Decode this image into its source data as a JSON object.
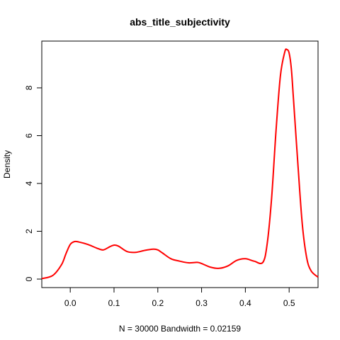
{
  "chart_data": {
    "type": "line",
    "title": "abs_title_subjectivity",
    "xlabel": "N = 30000   Bandwidth = 0.02159",
    "ylabel": "Density",
    "xlim": [
      -0.065,
      0.566
    ],
    "ylim": [
      0,
      9.6
    ],
    "grid": false,
    "legend": "none",
    "line_color": "#ff0000",
    "x_ticks": [
      "0.0",
      "0.1",
      "0.2",
      "0.3",
      "0.4",
      "0.5"
    ],
    "y_ticks": [
      "0",
      "2",
      "4",
      "6",
      "8"
    ],
    "series": [
      {
        "x": [
          -0.065,
          -0.04,
          -0.02,
          -0.01,
          0.0,
          0.01,
          0.02,
          0.04,
          0.06,
          0.075,
          0.09,
          0.1,
          0.11,
          0.13,
          0.15,
          0.17,
          0.19,
          0.2,
          0.21,
          0.23,
          0.25,
          0.27,
          0.29,
          0.3,
          0.32,
          0.34,
          0.36,
          0.38,
          0.4,
          0.42,
          0.44,
          0.45,
          0.46,
          0.47,
          0.48,
          0.49,
          0.495,
          0.5,
          0.505,
          0.51,
          0.52,
          0.53,
          0.54,
          0.55,
          0.566
        ],
        "y": [
          0.02,
          0.15,
          0.6,
          1.05,
          1.45,
          1.57,
          1.55,
          1.45,
          1.3,
          1.22,
          1.35,
          1.42,
          1.38,
          1.15,
          1.12,
          1.2,
          1.25,
          1.22,
          1.1,
          0.85,
          0.75,
          0.68,
          0.7,
          0.65,
          0.5,
          0.45,
          0.55,
          0.78,
          0.85,
          0.75,
          0.7,
          1.5,
          3.4,
          6.2,
          8.5,
          9.5,
          9.6,
          9.45,
          8.8,
          7.5,
          4.8,
          2.3,
          0.9,
          0.35,
          0.08
        ]
      }
    ]
  }
}
